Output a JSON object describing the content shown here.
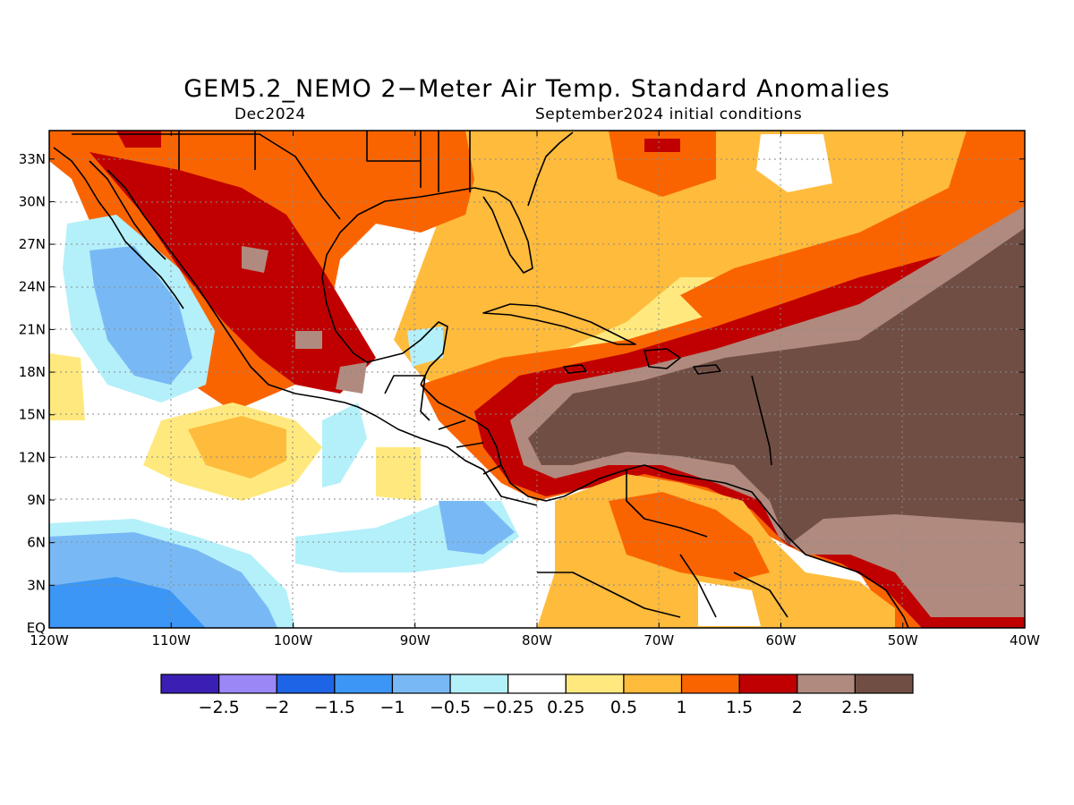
{
  "title": "GEM5.2_NEMO 2−Meter Air Temp. Standard Anomalies",
  "subtitle_left": "Dec2024",
  "subtitle_right": "September2024 initial conditions",
  "map": {
    "region": {
      "lon_range": [
        -120,
        -40
      ],
      "lat_range": [
        0,
        35
      ]
    },
    "y_ticks": [
      "33N",
      "30N",
      "27N",
      "24N",
      "21N",
      "18N",
      "15N",
      "12N",
      "9N",
      "6N",
      "3N",
      "EQ"
    ],
    "x_ticks": [
      "120W",
      "110W",
      "100W",
      "90W",
      "80W",
      "70W",
      "60W",
      "50W",
      "40W"
    ],
    "grid": true
  },
  "colorbar": {
    "labels": [
      "−2.5",
      "−2",
      "−1.5",
      "−1",
      "−0.5",
      "−0.25",
      "0.25",
      "0.5",
      "1",
      "1.5",
      "2",
      "2.5"
    ],
    "colors": [
      "#3b1fb4",
      "#9b87f5",
      "#1e64e6",
      "#3c96f5",
      "#78b9f5",
      "#b4f0fa",
      "#ffffff",
      "#ffe97f",
      "#ffbb3c",
      "#fa6400",
      "#c00000",
      "#b08a7e",
      "#704e44"
    ]
  },
  "colors": {
    "below_cool": "#b4f0fa",
    "mid_cool": "#78b9f5",
    "strong_cool": "#3c96f5",
    "neutral": "#ffffff",
    "weak_warm": "#ffe97f",
    "mod_warm": "#ffbb3c",
    "warm": "#fa6400",
    "strong_warm": "#c00000",
    "very_warm": "#b08a7e",
    "extreme_warm": "#704e44"
  }
}
